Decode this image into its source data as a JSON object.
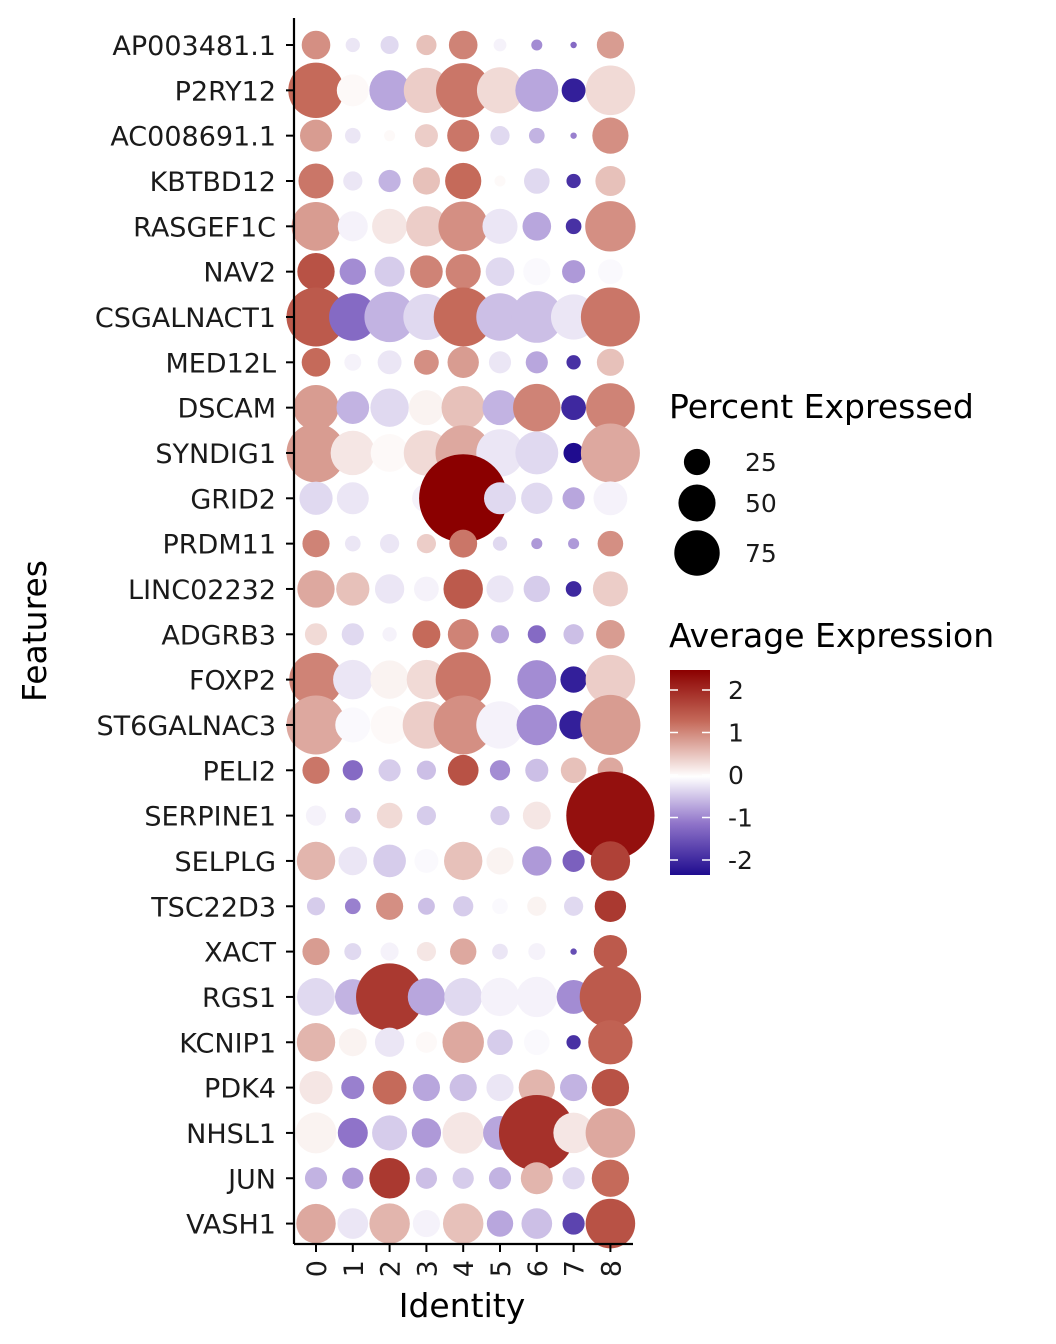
{
  "chart_data": {
    "type": "dotplot",
    "xlabel": "Identity",
    "ylabel": "Features",
    "categories": [
      "0",
      "1",
      "2",
      "3",
      "4",
      "5",
      "6",
      "7",
      "8"
    ],
    "features": [
      "AP003481.1",
      "P2RY12",
      "AC008691.1",
      "KBTBD12",
      "RASGEF1C",
      "NAV2",
      "CSGALNACT1",
      "MED12L",
      "DSCAM",
      "SYNDIG1",
      "GRID2",
      "PRDM11",
      "LINC02232",
      "ADGRB3",
      "FOXP2",
      "ST6GALNAC3",
      "PELI2",
      "SERPINE1",
      "SELPLG",
      "TSC22D3",
      "XACT",
      "RGS1",
      "KCNIP1",
      "PDK4",
      "NHSL1",
      "JUN",
      "VASH1"
    ],
    "percent_expressed": [
      [
        20,
        5,
        8,
        10,
        20,
        4,
        3,
        1,
        18
      ],
      [
        75,
        25,
        40,
        50,
        72,
        52,
        45,
        14,
        60
      ],
      [
        25,
        6,
        3,
        13,
        25,
        9,
        6,
        1,
        32
      ],
      [
        30,
        9,
        12,
        18,
        32,
        3,
        16,
        5,
        22
      ],
      [
        58,
        22,
        30,
        40,
        60,
        30,
        20,
        6,
        62
      ],
      [
        34,
        17,
        22,
        26,
        30,
        20,
        18,
        13,
        15
      ],
      [
        85,
        55,
        62,
        52,
        85,
        55,
        65,
        50,
        85
      ],
      [
        20,
        7,
        14,
        15,
        24,
        12,
        12,
        5,
        18
      ],
      [
        50,
        26,
        36,
        30,
        46,
        30,
        55,
        15,
        58
      ],
      [
        85,
        48,
        35,
        50,
        75,
        55,
        45,
        10,
        85
      ],
      [
        27,
        25,
        2,
        20,
        190,
        25,
        24,
        12,
        28
      ],
      [
        18,
        6,
        9,
        9,
        19,
        5,
        3,
        3,
        16
      ],
      [
        34,
        27,
        21,
        15,
        38,
        18,
        17,
        6,
        30
      ],
      [
        12,
        12,
        5,
        19,
        23,
        8,
        8,
        10,
        20
      ],
      [
        70,
        38,
        36,
        38,
        74,
        2,
        37,
        17,
        60
      ],
      [
        85,
        30,
        35,
        55,
        85,
        55,
        40,
        20,
        88
      ],
      [
        18,
        10,
        12,
        9,
        23,
        10,
        13,
        16,
        16
      ],
      [
        10,
        6,
        16,
        9,
        2,
        9,
        19,
        5,
        190
      ],
      [
        36,
        20,
        26,
        14,
        36,
        18,
        21,
        12,
        38
      ],
      [
        8,
        6,
        18,
        7,
        10,
        6,
        9,
        9,
        24
      ],
      [
        18,
        7,
        8,
        9,
        17,
        6,
        7,
        1,
        27
      ],
      [
        35,
        31,
        110,
        34,
        35,
        36,
        40,
        28,
        92
      ],
      [
        36,
        19,
        21,
        11,
        42,
        16,
        16,
        5,
        48
      ],
      [
        27,
        13,
        28,
        18,
        18,
        18,
        32,
        18,
        34
      ],
      [
        41,
        22,
        30,
        21,
        42,
        28,
        140,
        40,
        60
      ],
      [
        12,
        11,
        40,
        11,
        11,
        12,
        25,
        12,
        34
      ],
      [
        38,
        23,
        40,
        18,
        40,
        17,
        23,
        12,
        60
      ]
    ],
    "average_expression": [
      [
        0.9,
        -0.2,
        -0.3,
        0.5,
        1.0,
        -0.1,
        -0.9,
        -1.2,
        0.8
      ],
      [
        1.2,
        0.05,
        -0.7,
        0.4,
        1.1,
        0.3,
        -0.7,
        -2.0,
        0.3
      ],
      [
        0.8,
        -0.2,
        0.05,
        0.4,
        1.1,
        -0.3,
        -0.6,
        -1.0,
        0.9
      ],
      [
        1.1,
        -0.2,
        -0.6,
        0.5,
        1.2,
        0.05,
        -0.3,
        -1.8,
        0.5
      ],
      [
        0.8,
        -0.1,
        0.2,
        0.4,
        0.9,
        -0.2,
        -0.7,
        -1.8,
        0.9
      ],
      [
        1.5,
        -0.9,
        -0.4,
        1.0,
        1.0,
        -0.3,
        -0.05,
        -0.8,
        -0.05
      ],
      [
        1.4,
        -1.2,
        -0.6,
        -0.3,
        1.2,
        -0.5,
        -0.5,
        -0.2,
        1.1
      ],
      [
        1.2,
        -0.1,
        -0.2,
        0.9,
        0.8,
        -0.2,
        -0.7,
        -1.8,
        0.5
      ],
      [
        0.8,
        -0.6,
        -0.3,
        0.1,
        0.5,
        -0.6,
        1.0,
        -1.9,
        1.0
      ],
      [
        0.8,
        0.2,
        0.05,
        0.3,
        0.7,
        -0.2,
        -0.3,
        -2.2,
        0.7
      ],
      [
        -0.3,
        -0.2,
        0.0,
        -0.1,
        2.5,
        -0.3,
        -0.3,
        -0.7,
        -0.1
      ],
      [
        1.0,
        -0.2,
        -0.2,
        0.4,
        1.1,
        -0.3,
        -0.8,
        -0.8,
        0.9
      ],
      [
        0.7,
        0.5,
        -0.2,
        -0.1,
        1.4,
        -0.2,
        -0.4,
        -1.9,
        0.4
      ],
      [
        0.3,
        -0.3,
        -0.1,
        1.2,
        1.0,
        -0.7,
        -1.2,
        -0.5,
        0.8
      ],
      [
        1.0,
        -0.2,
        0.1,
        0.3,
        1.1,
        0.0,
        -0.9,
        -2.0,
        0.4
      ],
      [
        0.7,
        -0.05,
        0.05,
        0.4,
        0.9,
        -0.1,
        -0.9,
        -2.0,
        0.8
      ],
      [
        1.1,
        -1.2,
        -0.4,
        -0.5,
        1.5,
        -0.9,
        -0.5,
        0.5,
        0.7
      ],
      [
        -0.1,
        -0.5,
        0.3,
        -0.4,
        0.0,
        -0.4,
        0.2,
        -0.8,
        2.3
      ],
      [
        0.6,
        -0.2,
        -0.4,
        -0.05,
        0.5,
        0.1,
        -0.8,
        -1.3,
        1.7
      ],
      [
        -0.4,
        -1.0,
        0.9,
        -0.5,
        -0.4,
        -0.05,
        0.1,
        -0.3,
        1.8
      ],
      [
        0.8,
        -0.3,
        -0.1,
        0.2,
        0.7,
        -0.2,
        -0.1,
        -1.5,
        1.4
      ],
      [
        -0.3,
        -0.6,
        1.8,
        -0.7,
        -0.3,
        -0.1,
        -0.1,
        -0.9,
        1.4
      ],
      [
        0.6,
        0.1,
        -0.2,
        0.05,
        0.7,
        -0.4,
        -0.05,
        -1.8,
        1.3
      ],
      [
        0.2,
        -1.0,
        1.2,
        -0.7,
        -0.5,
        -0.2,
        0.6,
        -0.6,
        1.5
      ],
      [
        0.1,
        -1.1,
        -0.4,
        -0.8,
        0.2,
        -0.7,
        1.9,
        0.2,
        0.7
      ],
      [
        -0.6,
        -0.8,
        1.8,
        -0.5,
        -0.4,
        -0.6,
        0.6,
        -0.3,
        1.2
      ],
      [
        0.7,
        -0.2,
        0.6,
        -0.1,
        0.5,
        -0.7,
        -0.5,
        -1.6,
        1.5
      ]
    ],
    "size_legend": {
      "title": "Percent Expressed",
      "values": [
        25,
        50,
        75
      ],
      "labels": [
        "25",
        "50",
        "75"
      ]
    },
    "color_legend": {
      "title": "Average Expression",
      "ticks": [
        2,
        1,
        0,
        -1,
        -2
      ],
      "labels": [
        "2",
        "1",
        "0",
        "-1",
        "-2"
      ],
      "range": [
        -2.3,
        2.5
      ]
    },
    "colors": {
      "low": "#1f0c8f",
      "mid": "#ffffff",
      "high": "#8b0000",
      "midlow": "#8f73c9",
      "midhigh": "#c56a5a"
    }
  }
}
